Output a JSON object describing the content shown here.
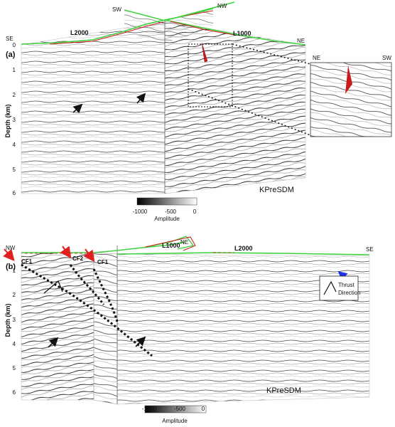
{
  "panel_a": {
    "label": "(a)",
    "dir_sw": "SW",
    "dir_nw": "NW",
    "dir_se": "SE",
    "dir_ne": "NE",
    "line_1": "L2000",
    "line_2": "L1000",
    "method": "KPreSDM",
    "inset_left": "NE",
    "inset_right": "SW"
  },
  "panel_b": {
    "label": "(b)",
    "dir_nw": "NW",
    "dir_ne": "NE",
    "dir_se": "SE",
    "line_1": "L1000",
    "line_2": "L2000",
    "method": "KPreSDM",
    "fault_1": "CF1",
    "fault_2": "CF2",
    "fault_3": "CF1",
    "legend_line1": "Thrust",
    "legend_line2": "Direction"
  },
  "axis": {
    "ylabel": "Depth (km)",
    "ticks": [
      "0",
      "1",
      "2",
      "3",
      "4",
      "5",
      "6"
    ]
  },
  "colorbar": {
    "ticks": [
      "-1000",
      "-500",
      "0"
    ],
    "label": "Amplitude"
  },
  "colors": {
    "topography": "#3fd13f",
    "well": "#cc1a1a",
    "arrow_black": "#111111",
    "arrow_red": "#e02020",
    "arrow_blue": "#2030e0"
  }
}
